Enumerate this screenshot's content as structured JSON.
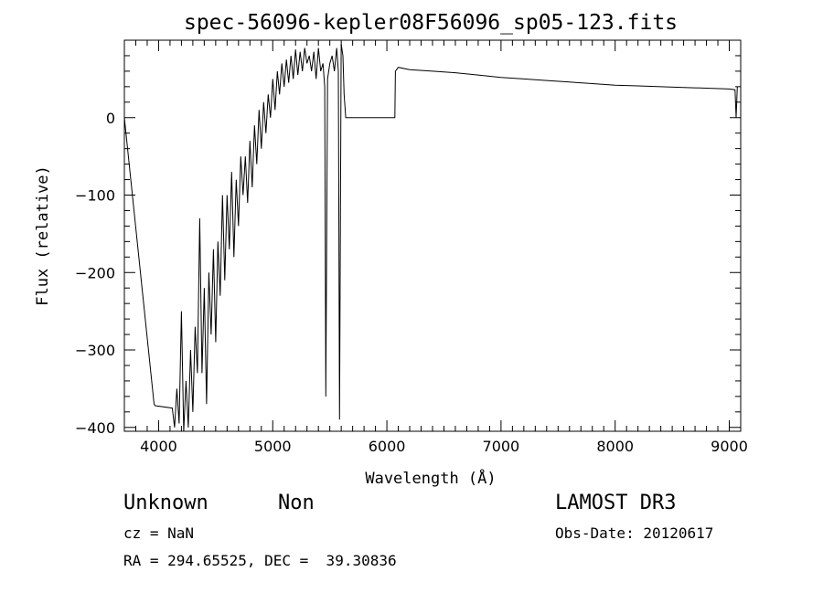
{
  "chart_data": {
    "type": "line",
    "title": "spec-56096-kepler08F56096_sp05-123.fits",
    "xlabel": "Wavelength (Å)",
    "ylabel": "Flux (relative)",
    "xlim": [
      3700,
      9100
    ],
    "ylim": [
      -405,
      100
    ],
    "xticks": [
      4000,
      5000,
      6000,
      7000,
      8000,
      9000
    ],
    "yticks": [
      0,
      -100,
      -200,
      -300,
      -400
    ],
    "series": [
      {
        "name": "flux",
        "x": [
          3700,
          3960,
          3970,
          4120,
          4140,
          4160,
          4180,
          4200,
          4220,
          4240,
          4260,
          4280,
          4300,
          4320,
          4340,
          4360,
          4380,
          4400,
          4420,
          4440,
          4460,
          4480,
          4500,
          4520,
          4540,
          4560,
          4580,
          4600,
          4620,
          4640,
          4660,
          4680,
          4700,
          4720,
          4740,
          4760,
          4780,
          4800,
          4820,
          4840,
          4860,
          4880,
          4900,
          4920,
          4940,
          4960,
          4980,
          5000,
          5020,
          5040,
          5060,
          5080,
          5100,
          5120,
          5140,
          5160,
          5180,
          5200,
          5220,
          5240,
          5260,
          5280,
          5300,
          5320,
          5340,
          5360,
          5380,
          5400,
          5420,
          5440,
          5455,
          5465,
          5480,
          5500,
          5520,
          5540,
          5560,
          5575,
          5585,
          5600,
          5615,
          5625,
          5640,
          6070,
          6075,
          6100,
          6200,
          6400,
          6600,
          6800,
          7000,
          7200,
          7400,
          7600,
          7800,
          8000,
          8200,
          8400,
          8600,
          8800,
          9000,
          9050,
          9060,
          9070
        ],
        "y": [
          0,
          -370,
          -372,
          -375,
          -400,
          -350,
          -395,
          -250,
          -405,
          -340,
          -400,
          -300,
          -380,
          -270,
          -330,
          -130,
          -330,
          -220,
          -370,
          -200,
          -280,
          -170,
          -290,
          -160,
          -230,
          -100,
          -210,
          -100,
          -170,
          -70,
          -180,
          -80,
          -140,
          -50,
          -100,
          -50,
          -110,
          -30,
          -90,
          -10,
          -60,
          10,
          -40,
          20,
          -20,
          30,
          0,
          50,
          10,
          60,
          30,
          70,
          40,
          75,
          45,
          80,
          50,
          88,
          55,
          85,
          60,
          90,
          70,
          80,
          60,
          85,
          50,
          90,
          60,
          70,
          40,
          -360,
          50,
          70,
          80,
          60,
          90,
          60,
          -390,
          95,
          80,
          30,
          0,
          0,
          60,
          65,
          62,
          60,
          58,
          55,
          52,
          50,
          48,
          46,
          44,
          42,
          41,
          40,
          39,
          38,
          37,
          36,
          0,
          40
        ]
      }
    ]
  },
  "info": {
    "object_class": "Unknown",
    "object_subclass": "Non",
    "survey": "LAMOST DR3",
    "cz": "cz = NaN",
    "obs_date": "Obs-Date: 20120617",
    "coords": "RA = 294.65525, DEC =  39.30836"
  }
}
